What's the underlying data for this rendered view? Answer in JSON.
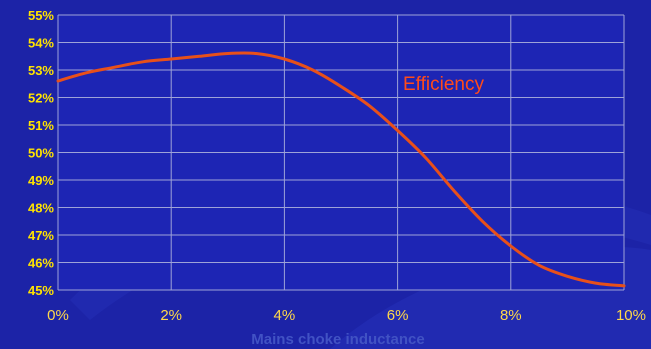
{
  "chart_data": {
    "type": "line",
    "title": "",
    "xlabel": "Mains choke inductance",
    "ylabel": "",
    "x_ticks": [
      "0%",
      "2%",
      "4%",
      "6%",
      "8%",
      "10%"
    ],
    "y_ticks": [
      "45%",
      "46%",
      "47%",
      "48%",
      "49%",
      "50%",
      "51%",
      "52%",
      "53%",
      "54%",
      "55%"
    ],
    "xlim": [
      0,
      10
    ],
    "ylim": [
      45,
      55
    ],
    "grid": true,
    "series": [
      {
        "name": "Efficiency",
        "color": "#e8501a",
        "x": [
          0,
          0.5,
          1,
          1.5,
          2,
          2.5,
          3,
          3.5,
          4,
          4.5,
          5,
          5.5,
          6,
          6.5,
          7,
          7.5,
          8,
          8.5,
          9,
          9.5,
          10
        ],
        "y": [
          52.6,
          52.9,
          53.1,
          53.3,
          53.4,
          53.5,
          53.6,
          53.6,
          53.4,
          53.0,
          52.4,
          51.7,
          50.8,
          49.8,
          48.6,
          47.5,
          46.6,
          45.9,
          45.5,
          45.25,
          45.15
        ]
      }
    ]
  },
  "colors": {
    "background": "#1c23a7",
    "plot_area": "#1d25b4",
    "grid": "#9ea3d8",
    "line": "#e8501a"
  }
}
